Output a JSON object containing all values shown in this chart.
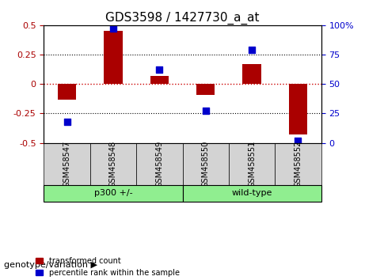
{
  "title": "GDS3598 / 1427730_a_at",
  "samples": [
    "GSM458547",
    "GSM458548",
    "GSM458549",
    "GSM458550",
    "GSM458551",
    "GSM458552"
  ],
  "red_values": [
    -0.13,
    0.45,
    0.07,
    -0.09,
    0.17,
    -0.43
  ],
  "blue_values": [
    18,
    97,
    62,
    27,
    79,
    2
  ],
  "ylim_left": [
    -0.5,
    0.5
  ],
  "ylim_right": [
    0,
    100
  ],
  "yticks_left": [
    -0.5,
    -0.25,
    0,
    0.25,
    0.5
  ],
  "yticks_right": [
    0,
    25,
    50,
    75,
    100
  ],
  "ytick_labels_right": [
    "0",
    "25",
    "50",
    "75",
    "100%"
  ],
  "groups": [
    {
      "label": "p300 +/-",
      "indices": [
        0,
        1,
        2
      ],
      "color": "#90EE90"
    },
    {
      "label": "wild-type",
      "indices": [
        3,
        4,
        5
      ],
      "color": "#90EE90"
    }
  ],
  "group_labels": [
    "p300 +/-",
    "wild-type"
  ],
  "group_colors": [
    "#90EE90",
    "#90EE90"
  ],
  "bar_color": "#AA0000",
  "dot_color": "#0000CC",
  "bar_width": 0.4,
  "dot_size": 40,
  "hline_color": "#CC0000",
  "hline_style": ":",
  "grid_style": ":",
  "grid_color": "black",
  "background_plot": "white",
  "background_label": "#D3D3D3",
  "legend_red_label": "transformed count",
  "legend_blue_label": "percentile rank within the sample",
  "genotype_label": "genotype/variation",
  "title_fontsize": 11,
  "tick_fontsize": 8,
  "label_fontsize": 8
}
